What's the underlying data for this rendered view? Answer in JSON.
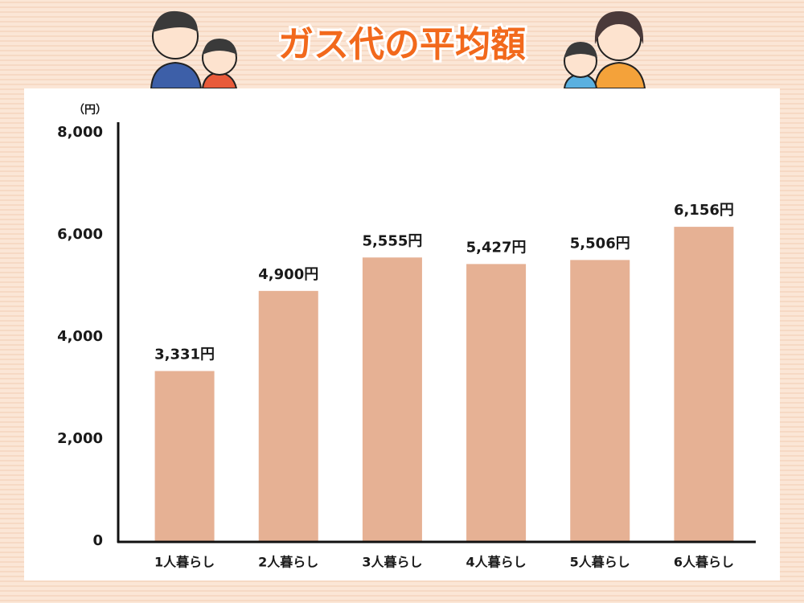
{
  "chart_data": {
    "type": "bar",
    "title": "ガス代の平均額",
    "y_label": "（円）",
    "categories": [
      "1人暮らし",
      "2人暮らし",
      "3人暮らし",
      "4人暮らし",
      "5人暮らし",
      "6人暮らし"
    ],
    "values": [
      3331,
      4900,
      5555,
      5427,
      5506,
      6156
    ],
    "value_labels": [
      "3,331円",
      "4,900円",
      "5,555円",
      "5,427円",
      "5,506円",
      "6,156円"
    ],
    "color": "#e6b194",
    "ylim": [
      0,
      8000
    ],
    "yticks": [
      0,
      {
        "value": 2000,
        "label": "2,000"
      },
      {
        "value": 4000,
        "label": "4,000"
      },
      {
        "value": 6000,
        "label": "6,000"
      },
      {
        "value": 8000,
        "label": "8,000"
      }
    ],
    "grid": false
  }
}
